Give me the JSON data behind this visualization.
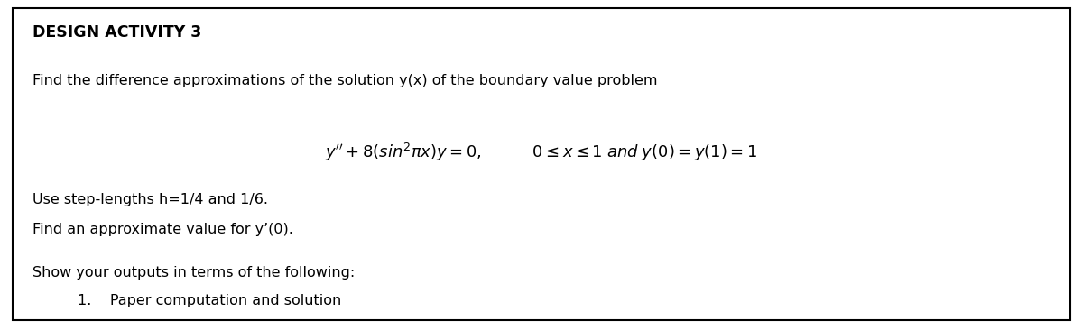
{
  "title": "DESIGN ACTIVITY 3",
  "line1": "Find the difference approximations of the solution y(x) of the boundary value problem",
  "line3": "Use step-lengths h=1/4 and 1/6.",
  "line4": "Find an approximate value for y’(0).",
  "line5": "Show your outputs in terms of the following:",
  "item1": "1.    Paper computation and solution",
  "bg_color": "#ffffff",
  "border_color": "#000000",
  "text_color": "#000000",
  "title_fontsize": 12.5,
  "body_fontsize": 11.5,
  "eq_fontsize": 13,
  "fig_width": 12.0,
  "fig_height": 3.66,
  "dpi": 100
}
